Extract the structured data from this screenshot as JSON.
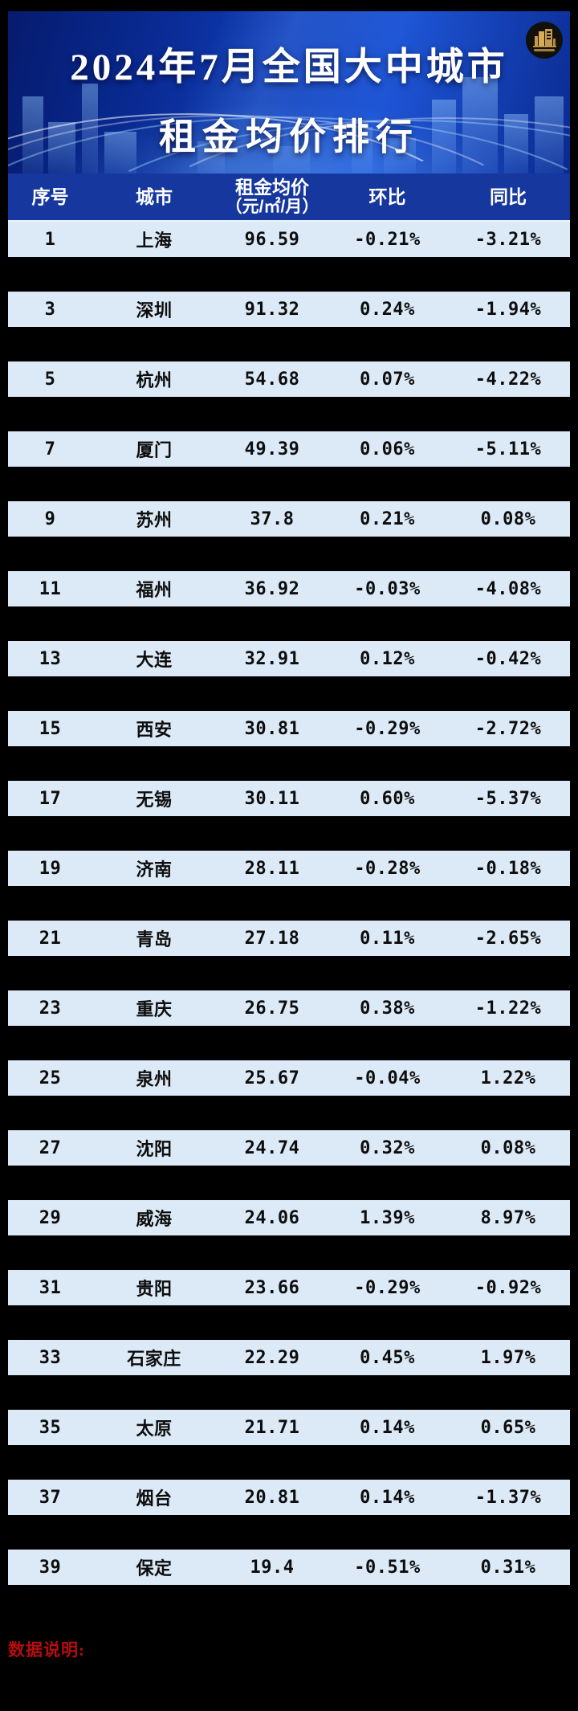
{
  "banner": {
    "title_line1": "2024年7月全国大中城市",
    "title_line2": "租金均价排行",
    "logo": "gold-buildings-badge"
  },
  "table": {
    "headers": [
      {
        "label": "序号"
      },
      {
        "label": "城市"
      },
      {
        "label": "租金均价",
        "sub": "（元/㎡/月）"
      },
      {
        "label": "环比"
      },
      {
        "label": "同比"
      }
    ],
    "rows": [
      [
        "1",
        "上海",
        "96.59",
        "-0.21%",
        "-3.21%"
      ],
      [
        "3",
        "深圳",
        "91.32",
        "0.24%",
        "-1.94%"
      ],
      [
        "5",
        "杭州",
        "54.68",
        "0.07%",
        "-4.22%"
      ],
      [
        "7",
        "厦门",
        "49.39",
        "0.06%",
        "-5.11%"
      ],
      [
        "9",
        "苏州",
        "37.8",
        "0.21%",
        "0.08%"
      ],
      [
        "11",
        "福州",
        "36.92",
        "-0.03%",
        "-4.08%"
      ],
      [
        "13",
        "大连",
        "32.91",
        "0.12%",
        "-0.42%"
      ],
      [
        "15",
        "西安",
        "30.81",
        "-0.29%",
        "-2.72%"
      ],
      [
        "17",
        "无锡",
        "30.11",
        "0.60%",
        "-5.37%"
      ],
      [
        "19",
        "济南",
        "28.11",
        "-0.28%",
        "-0.18%"
      ],
      [
        "21",
        "青岛",
        "27.18",
        "0.11%",
        "-2.65%"
      ],
      [
        "23",
        "重庆",
        "26.75",
        "0.38%",
        "-1.22%"
      ],
      [
        "25",
        "泉州",
        "25.67",
        "-0.04%",
        "1.22%"
      ],
      [
        "27",
        "沈阳",
        "24.74",
        "0.32%",
        "0.08%"
      ],
      [
        "29",
        "威海",
        "24.06",
        "1.39%",
        "8.97%"
      ],
      [
        "31",
        "贵阳",
        "23.66",
        "-0.29%",
        "-0.92%"
      ],
      [
        "33",
        "石家庄",
        "22.29",
        "0.45%",
        "1.97%"
      ],
      [
        "35",
        "太原",
        "21.71",
        "0.14%",
        "0.65%"
      ],
      [
        "37",
        "烟台",
        "20.81",
        "0.14%",
        "-1.37%"
      ],
      [
        "39",
        "保定",
        "19.4",
        "-0.51%",
        "0.31%"
      ]
    ]
  },
  "footnote": {
    "label": "数据说明:"
  },
  "colors": {
    "page_bg": "#000000",
    "banner_blue_dark": "#051b6e",
    "banner_blue_bright": "#1e55d6",
    "header_bg": "#16379d",
    "row_bg": "#dce9f6",
    "title_text": "#ffffff",
    "footnote_red": "#b50d0d",
    "logo_gold": "#c59a4e"
  }
}
